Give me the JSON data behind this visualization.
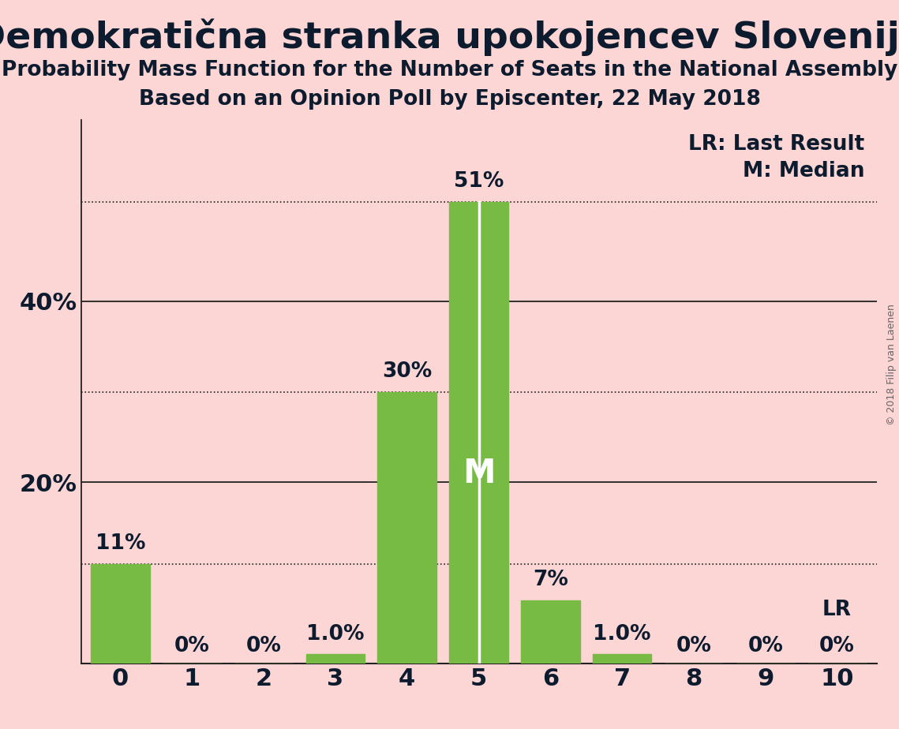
{
  "title": "Demokratična stranka upokojencev Slovenije",
  "subtitle1": "Probability Mass Function for the Number of Seats in the National Assembly",
  "subtitle2": "Based on an Opinion Poll by Episcenter, 22 May 2018",
  "copyright": "© 2018 Filip van Laenen",
  "categories": [
    0,
    1,
    2,
    3,
    4,
    5,
    6,
    7,
    8,
    9,
    10
  ],
  "values": [
    0.11,
    0.0,
    0.0,
    0.01,
    0.3,
    0.51,
    0.07,
    0.01,
    0.0,
    0.0,
    0.0
  ],
  "labels": [
    "11%",
    "0%",
    "0%",
    "1.0%",
    "30%",
    "51%",
    "7%",
    "1.0%",
    "0%",
    "0%",
    "0%"
  ],
  "bar_color": "#77bb44",
  "background_color": "#fcd5d5",
  "median_bar_idx": 5,
  "lr_bar_idx": 10,
  "lr_legend": "LR: Last Result",
  "m_legend": "M: Median",
  "solid_hlines": [
    0.2,
    0.4
  ],
  "dotted_hlines": [
    0.11,
    0.3,
    0.51
  ],
  "ytick_positions": [
    0.2,
    0.4
  ],
  "yticklabels": [
    "20%",
    "40%"
  ],
  "ylim": [
    0,
    0.6
  ],
  "xlim": [
    -0.55,
    10.55
  ],
  "title_fontsize": 34,
  "subtitle_fontsize": 19,
  "label_fontsize": 19,
  "tick_fontsize": 22,
  "legend_fontsize": 19,
  "copyright_fontsize": 9
}
